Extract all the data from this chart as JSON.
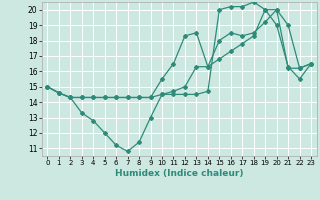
{
  "xlabel": "Humidex (Indice chaleur)",
  "bg_color": "#cce8e0",
  "grid_color": "#ffffff",
  "line_color": "#2e8b7a",
  "xlim": [
    -0.5,
    23.5
  ],
  "ylim": [
    10.5,
    20.5
  ],
  "xticks": [
    0,
    1,
    2,
    3,
    4,
    5,
    6,
    7,
    8,
    9,
    10,
    11,
    12,
    13,
    14,
    15,
    16,
    17,
    18,
    19,
    20,
    21,
    22,
    23
  ],
  "yticks": [
    11,
    12,
    13,
    14,
    15,
    16,
    17,
    18,
    19,
    20
  ],
  "series1_y": [
    15,
    14.6,
    14.3,
    13.3,
    12.8,
    12.0,
    11.2,
    10.8,
    11.4,
    13.0,
    14.5,
    14.5,
    14.5,
    14.5,
    14.7,
    20.0,
    20.2,
    20.2,
    20.5,
    20.0,
    19.0,
    16.3,
    15.5,
    16.5
  ],
  "series2_y": [
    15,
    14.6,
    14.3,
    14.3,
    14.3,
    14.3,
    14.3,
    14.3,
    14.3,
    14.3,
    14.5,
    14.7,
    15.0,
    16.3,
    16.3,
    16.8,
    17.3,
    17.8,
    18.3,
    20.0,
    20.0,
    16.2,
    16.2,
    16.5
  ],
  "series3_y": [
    15,
    14.6,
    14.3,
    14.3,
    14.3,
    14.3,
    14.3,
    14.3,
    14.3,
    14.3,
    15.5,
    16.5,
    18.3,
    18.5,
    16.3,
    18.0,
    18.5,
    18.3,
    18.5,
    19.2,
    20.0,
    19.0,
    16.2,
    16.5
  ]
}
